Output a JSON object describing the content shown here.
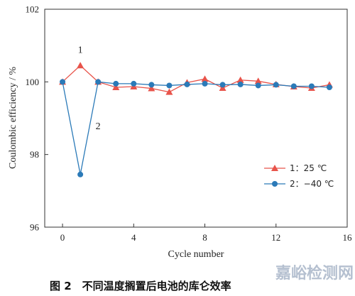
{
  "chart_data": {
    "type": "line",
    "xlabel": "Cycle number",
    "ylabel": "Coulombic efficiency / %",
    "xlim": [
      -1,
      16
    ],
    "ylim": [
      96,
      102
    ],
    "xticks": [
      0,
      4,
      8,
      12,
      16
    ],
    "yticks": [
      96,
      98,
      100,
      102
    ],
    "x": [
      0,
      1,
      2,
      3,
      4,
      5,
      6,
      7,
      8,
      9,
      10,
      11,
      12,
      13,
      14,
      15
    ],
    "series": [
      {
        "name": "1：25 ℃",
        "color": "#e8534a",
        "marker": "triangle",
        "values": [
          100.0,
          100.45,
          100.0,
          99.85,
          99.87,
          99.82,
          99.72,
          99.98,
          100.08,
          99.83,
          100.05,
          100.02,
          99.93,
          99.87,
          99.83,
          99.92
        ]
      },
      {
        "name": "2：−40 ℃",
        "color": "#2b7ab8",
        "marker": "circle",
        "values": [
          100.0,
          97.45,
          100.0,
          99.95,
          99.95,
          99.92,
          99.9,
          99.93,
          99.95,
          99.92,
          99.93,
          99.9,
          99.92,
          99.88,
          99.88,
          99.85
        ]
      }
    ],
    "annotations": [
      {
        "text": "1",
        "x": 1,
        "y": 100.8
      },
      {
        "text": "2",
        "x": 2,
        "y": 98.7
      }
    ],
    "legend_position": "bottom-right",
    "grid": false
  },
  "caption": "图 2　不同温度搁置后电池的库仑效率",
  "watermark": "嘉峪检测网"
}
